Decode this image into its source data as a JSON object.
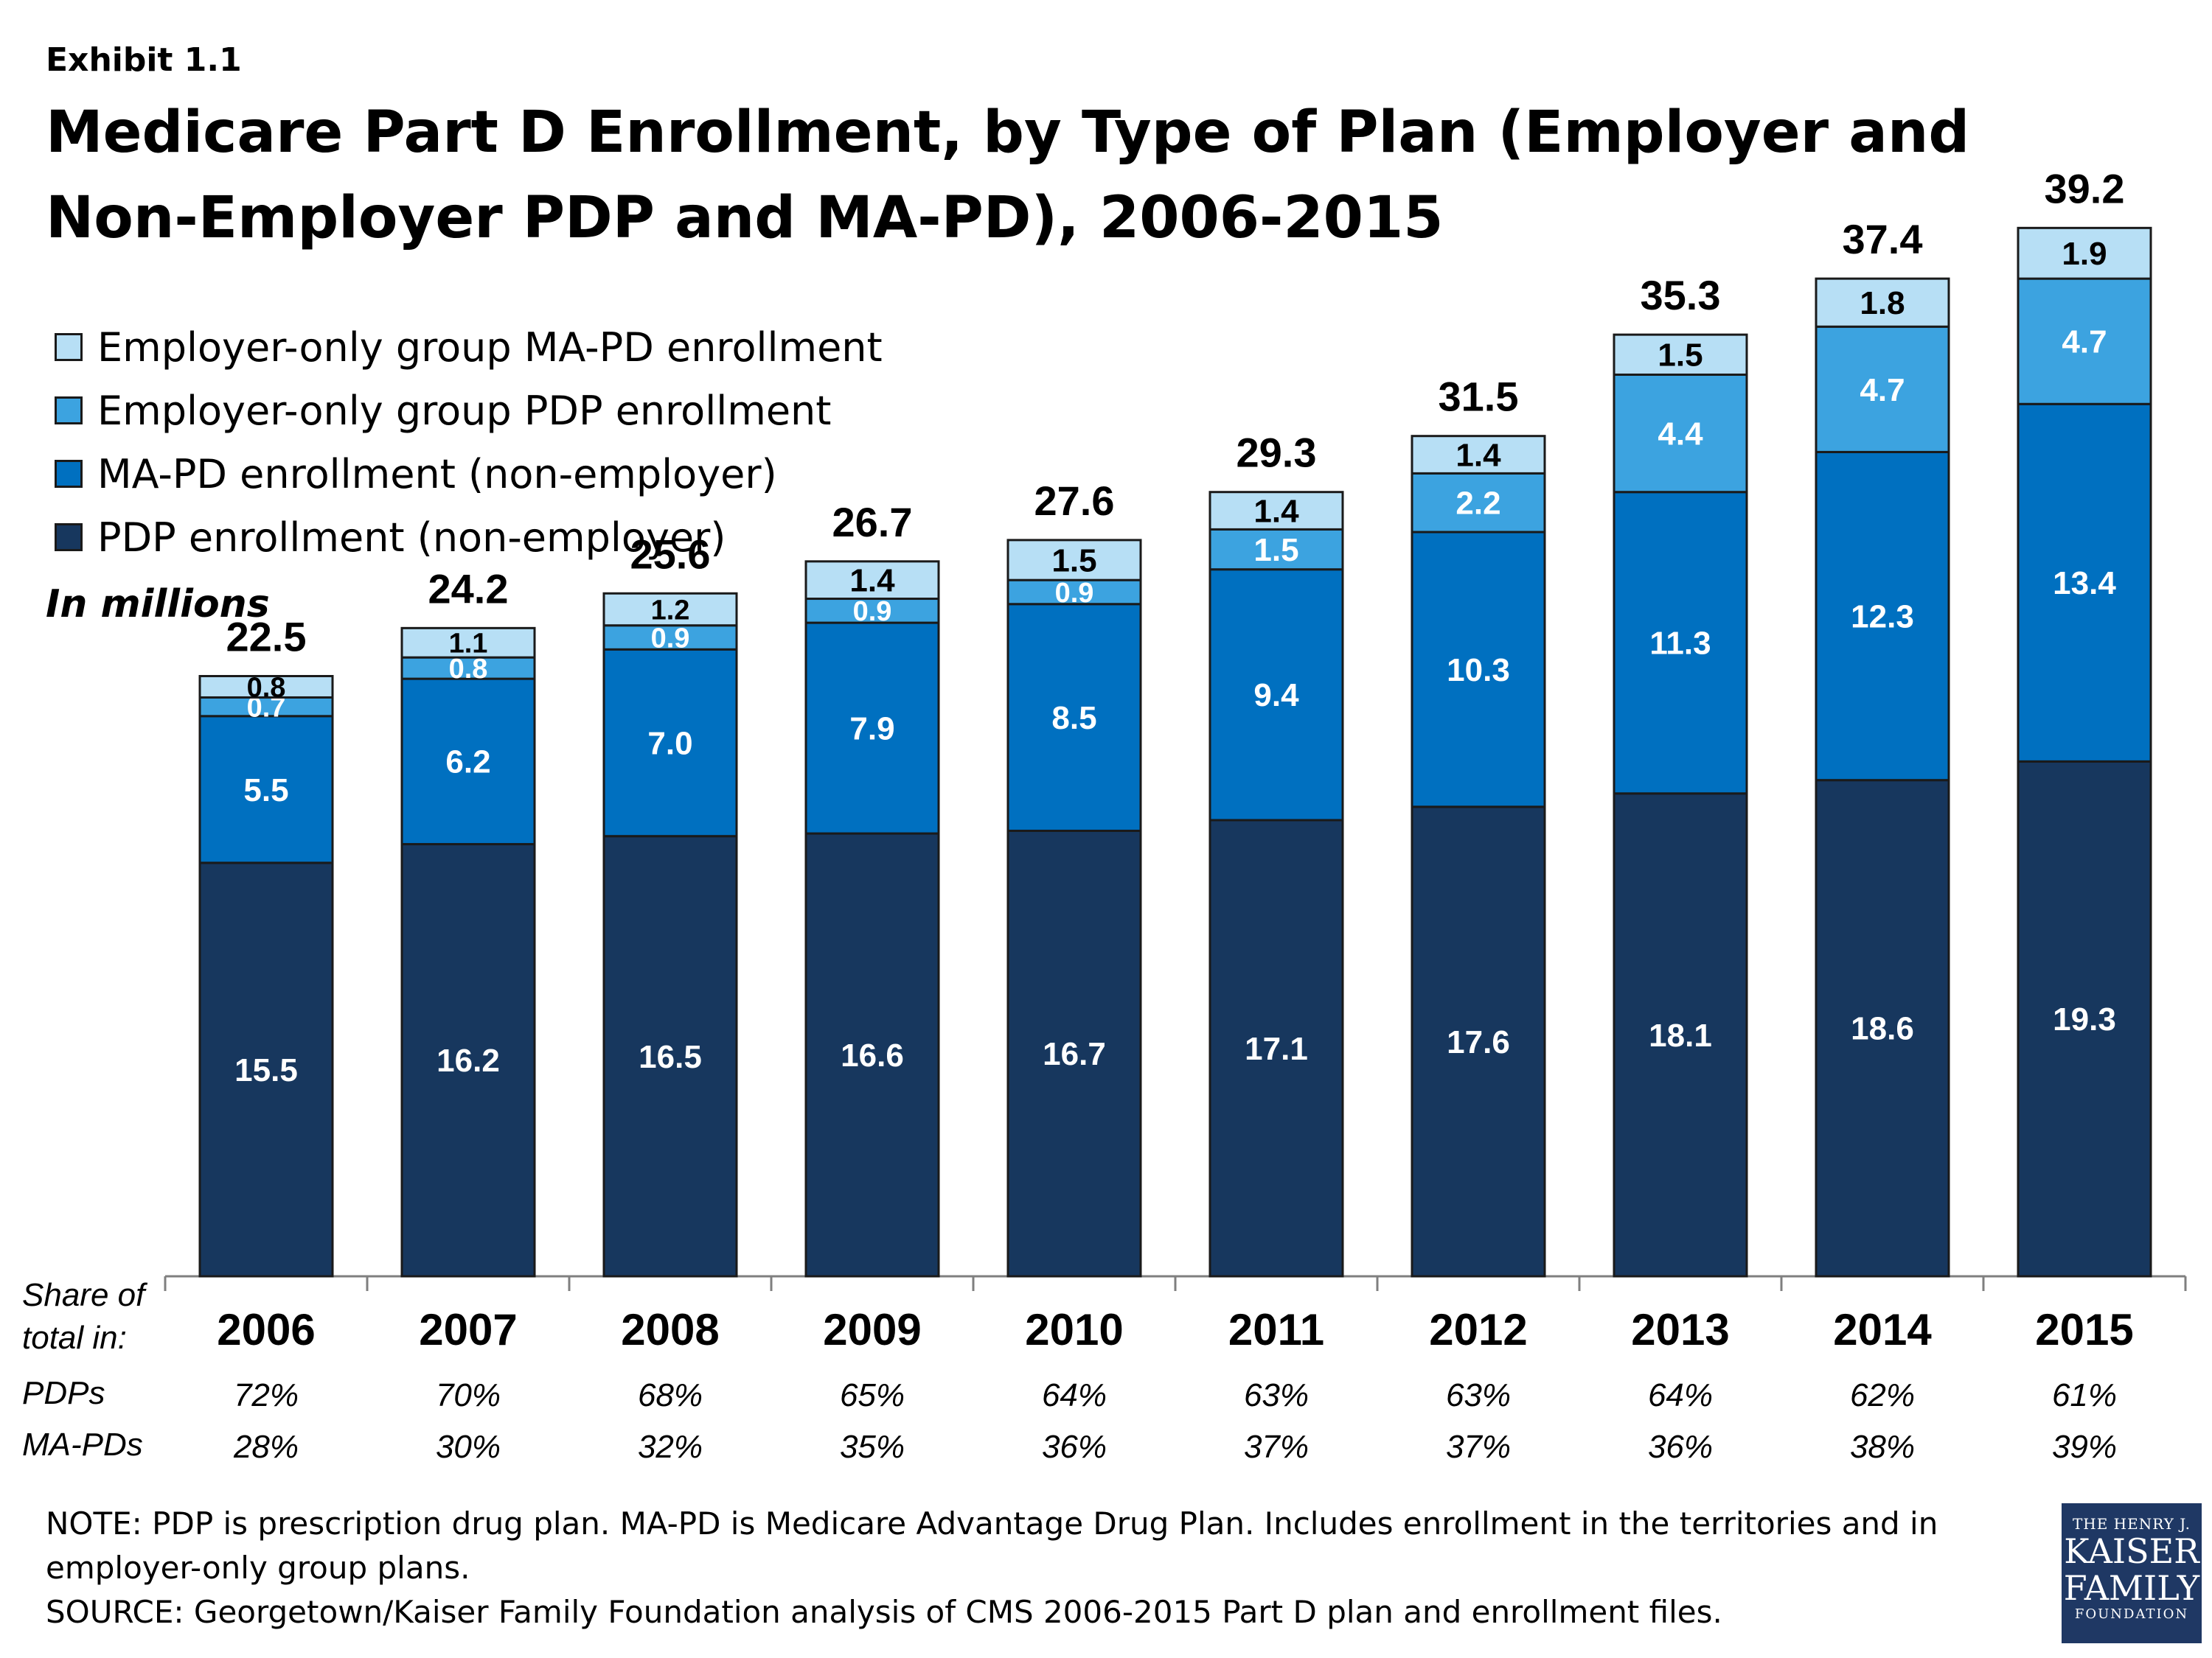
{
  "exhibit": "Exhibit 1.1",
  "title": "Medicare Part D Enrollment, by Type of Plan (Employer and Non-Employer PDP and MA-PD), 2006-2015",
  "units_label": "In millions",
  "share_label_line1": "Share of",
  "share_label_line2": "total in:",
  "row_label_pdp": "PDPs",
  "row_label_mapd": "MA-PDs",
  "note": "NOTE: PDP is prescription drug plan. MA-PD is Medicare Advantage Drug Plan. Includes enrollment in the territories and in employer-only group plans.",
  "source": "SOURCE: Georgetown/Kaiser Family Foundation analysis of CMS 2006-2015 Part D plan and enrollment files.",
  "logo": {
    "line1": "THE HENRY J.",
    "line2": "KAISER",
    "line3": "FAMILY",
    "line4": "FOUNDATION"
  },
  "colors": {
    "pdp_nonemployer": "#17375e",
    "mapd_nonemployer": "#0070c0",
    "employer_pdp": "#3ca3e0",
    "employer_mapd": "#b7dff5"
  },
  "chart_data": {
    "type": "bar",
    "stacked": true,
    "categories": [
      "2006",
      "2007",
      "2008",
      "2009",
      "2010",
      "2011",
      "2012",
      "2013",
      "2014",
      "2015"
    ],
    "series": [
      {
        "name": "PDP enrollment (non-employer)",
        "color": "#17375e",
        "values": [
          15.5,
          16.2,
          16.5,
          16.6,
          16.7,
          17.1,
          17.6,
          18.1,
          18.6,
          19.3
        ]
      },
      {
        "name": "MA-PD enrollment (non-employer)",
        "color": "#0070c0",
        "values": [
          5.5,
          6.2,
          7.0,
          7.9,
          8.5,
          9.4,
          10.3,
          11.3,
          12.3,
          13.4
        ]
      },
      {
        "name": "Employer-only group PDP enrollment",
        "color": "#3ca3e0",
        "values": [
          0.7,
          0.8,
          0.9,
          0.9,
          0.9,
          1.5,
          2.2,
          4.4,
          4.7,
          4.7
        ]
      },
      {
        "name": "Employer-only group MA-PD enrollment",
        "color": "#b7dff5",
        "values": [
          0.8,
          1.1,
          1.2,
          1.4,
          1.5,
          1.4,
          1.4,
          1.5,
          1.8,
          1.9
        ]
      }
    ],
    "totals": [
      "22.5",
      "24.2",
      "25.6",
      "26.7",
      "27.6",
      "29.3",
      "31.5",
      "35.3",
      "37.4",
      "39.2"
    ],
    "value_labels": [
      [
        "15.5",
        "16.2",
        "16.5",
        "16.6",
        "16.7",
        "17.1",
        "17.6",
        "18.1",
        "18.6",
        "19.3"
      ],
      [
        "5.5",
        "6.2",
        "7.0",
        "7.9",
        "8.5",
        "9.4",
        "10.3",
        "11.3",
        "12.3",
        "13.4"
      ],
      [
        "0.7",
        "0.8",
        "0.9",
        "0.9",
        "0.9",
        "1.5",
        "2.2",
        "4.4",
        "4.7",
        "4.7"
      ],
      [
        "0.8",
        "1.1",
        "1.2",
        "1.4",
        "1.5",
        "1.4",
        "1.4",
        "1.5",
        "1.8",
        "1.9"
      ]
    ],
    "share_pdp": [
      "72%",
      "70%",
      "68%",
      "65%",
      "64%",
      "63%",
      "63%",
      "64%",
      "62%",
      "61%"
    ],
    "share_mapd": [
      "28%",
      "30%",
      "32%",
      "35%",
      "36%",
      "37%",
      "37%",
      "36%",
      "38%",
      "39%"
    ],
    "ylim": [
      0,
      40
    ],
    "legend_position": "top-left",
    "grid": false,
    "ylabel": "In millions"
  }
}
